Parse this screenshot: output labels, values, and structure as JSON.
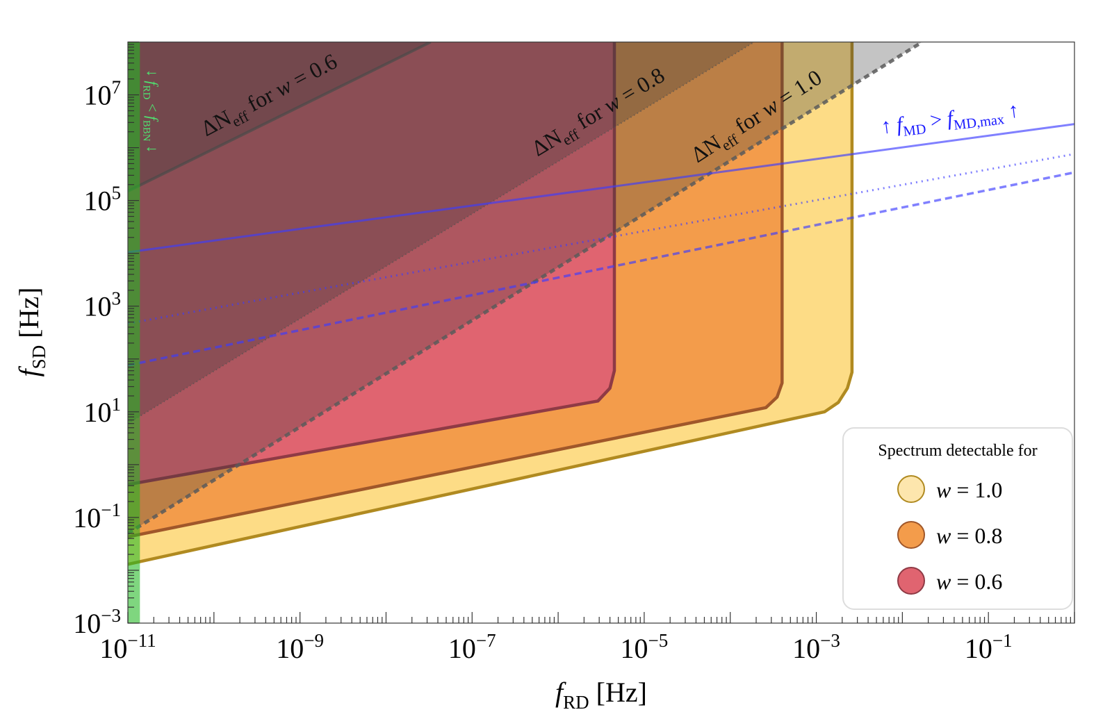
{
  "chart_data": {
    "type": "area",
    "x_scale": "log",
    "y_scale": "log",
    "xlim": [
      1e-11,
      1
    ],
    "ylim": [
      0.001,
      100000000.0
    ],
    "grid": false,
    "xlabel": {
      "var": "f",
      "sub": "RD",
      "unit": "[Hz]"
    },
    "ylabel": {
      "var": "f",
      "sub": "SD",
      "unit": "[Hz]"
    },
    "x_ticks": [
      {
        "base": "10",
        "exp": "−11"
      },
      {
        "base": "10",
        "exp": "−9"
      },
      {
        "base": "10",
        "exp": "−7"
      },
      {
        "base": "10",
        "exp": "−5"
      },
      {
        "base": "10",
        "exp": "−3"
      },
      {
        "base": "10",
        "exp": "−1"
      }
    ],
    "x_tick_values": [
      1e-11,
      1e-09,
      1e-07,
      1e-05,
      0.001,
      0.1
    ],
    "y_ticks": [
      {
        "base": "10",
        "exp": "−3"
      },
      {
        "base": "10",
        "exp": "−1"
      },
      {
        "base": "10",
        "exp": "1"
      },
      {
        "base": "10",
        "exp": "3"
      },
      {
        "base": "10",
        "exp": "5"
      },
      {
        "base": "10",
        "exp": "7"
      }
    ],
    "y_tick_values": [
      0.001,
      0.1,
      10.0,
      1000.0,
      100000.0,
      10000000.0
    ],
    "detectable_regions": [
      {
        "name": "w = 1.0",
        "fill": "#fddc86",
        "edge": "#b08a20",
        "legend_fill": "#fde6ad",
        "boundary": [
          [
            1e-11,
            0.013
          ],
          [
            0.00125,
            10
          ],
          [
            0.0018,
            15
          ],
          [
            0.0023,
            28
          ],
          [
            0.0026,
            56
          ],
          [
            0.0026,
            100000000.0
          ]
        ]
      },
      {
        "name": "w = 0.8",
        "fill": "#f39c4b",
        "edge": "#a0572a",
        "legend_fill": "#f39c4b",
        "boundary": [
          [
            1e-11,
            0.043
          ],
          [
            0.00026,
            12
          ],
          [
            0.00035,
            19
          ],
          [
            0.0004,
            35
          ],
          [
            0.0004,
            100000000.0
          ]
        ]
      },
      {
        "name": "w = 0.6",
        "fill": "#e06470",
        "edge": "#8f3a45",
        "legend_fill": "#e06470",
        "boundary": [
          [
            1e-11,
            0.42
          ],
          [
            2.9e-06,
            16
          ],
          [
            4e-06,
            28
          ],
          [
            4.5e-06,
            60
          ],
          [
            4.5e-06,
            100000000.0
          ]
        ]
      }
    ],
    "neff_bounds": [
      {
        "w": "0.6",
        "style": "solid",
        "line": [
          [
            1e-11,
            150000.0
          ],
          [
            3.3e-08,
            100000000.0
          ]
        ],
        "label": {
          "pre": "ΔN",
          "sub": "eff",
          "mid": " for ",
          "var": "w",
          "post": " = 0.6"
        }
      },
      {
        "w": "0.8",
        "style": "dotted",
        "line": [
          [
            1e-11,
            6
          ],
          [
            0.00019,
            100000000.0
          ]
        ],
        "label": {
          "pre": "ΔN",
          "sub": "eff",
          "mid": " for ",
          "var": "w",
          "post": " = 0.8"
        }
      },
      {
        "w": "1.0",
        "style": "dashed",
        "line": [
          [
            1e-11,
            0.05
          ],
          [
            0.017,
            100000000.0
          ]
        ],
        "label": {
          "pre": "ΔN",
          "sub": "eff",
          "mid": " for ",
          "var": "w",
          "post": " = 1.0"
        }
      }
    ],
    "neff_color": "#5a5a5a",
    "md_lines": [
      {
        "style": "solid",
        "line": [
          [
            1e-11,
            10500.0
          ],
          [
            1,
            2800000.0
          ]
        ]
      },
      {
        "style": "dotted",
        "line": [
          [
            1e-11,
            470
          ],
          [
            1,
            760000.0
          ]
        ]
      },
      {
        "style": "dashed",
        "line": [
          [
            1e-11,
            76
          ],
          [
            1,
            340000.0
          ]
        ]
      }
    ],
    "md_color": "#3c3cff",
    "md_label": {
      "arrow_l": "↑ ",
      "var": "f",
      "sub": "MD",
      "mid": " > ",
      "var2": "f",
      "sub2": "MD,max",
      "arrow_r": " ↑"
    },
    "bbn_band": {
      "x_range": [
        1e-11,
        1.38e-11
      ],
      "color": "#22b822",
      "label": {
        "arrow_l": "↓ ",
        "var": "f",
        "sub": "RD",
        "mid": " < ",
        "var2": "f",
        "sub2": "BBN",
        "arrow_r": " ↓"
      }
    },
    "legend": {
      "title": "Spectrum detectable for",
      "placement": "bottom-right",
      "items": [
        {
          "var": "w",
          "text": " = 1.0"
        },
        {
          "var": "w",
          "text": " = 0.8"
        },
        {
          "var": "w",
          "text": " = 0.6"
        }
      ]
    }
  }
}
